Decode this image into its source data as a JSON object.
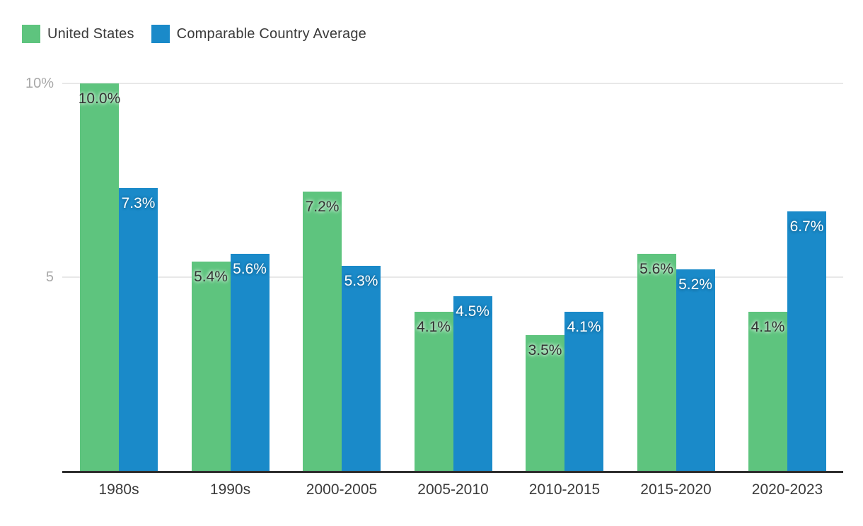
{
  "legend": [
    {
      "label": "United States",
      "color": "#5EC47E"
    },
    {
      "label": "Comparable Country Average",
      "color": "#1A8AC9"
    }
  ],
  "y_axis": {
    "ticks": [
      {
        "label": "10%",
        "value": 10
      },
      {
        "label": "5",
        "value": 5
      }
    ]
  },
  "chart_data": {
    "type": "bar",
    "title": "",
    "xlabel": "",
    "ylabel": "",
    "ylim": [
      0,
      10
    ],
    "grid": "horizontal gridlines at 5 and 10",
    "legend_position": "top-left",
    "categories": [
      "1980s",
      "1990s",
      "2000-2005",
      "2005-2010",
      "2010-2015",
      "2015-2020",
      "2020-2023"
    ],
    "series": [
      {
        "name": "United States",
        "color": "#5EC47E",
        "values": [
          10.0,
          5.4,
          7.2,
          4.1,
          3.5,
          5.6,
          4.1
        ],
        "labels": [
          "10.0%",
          "5.4%",
          "7.2%",
          "4.1%",
          "3.5%",
          "5.6%",
          "4.1%"
        ]
      },
      {
        "name": "Comparable Country Average",
        "color": "#1A8AC9",
        "values": [
          7.3,
          5.6,
          5.3,
          4.5,
          4.1,
          5.2,
          6.7
        ],
        "labels": [
          "7.3%",
          "5.6%",
          "5.3%",
          "4.5%",
          "4.1%",
          "5.2%",
          "6.7%"
        ]
      }
    ]
  }
}
